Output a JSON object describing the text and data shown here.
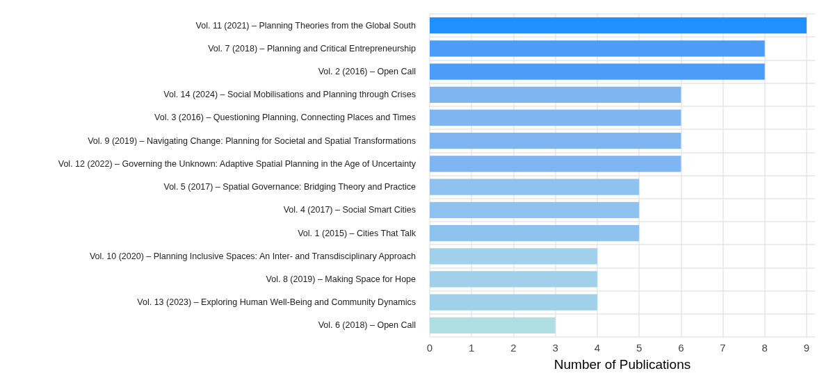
{
  "chart_data": {
    "type": "bar",
    "orientation": "horizontal",
    "xlabel": "Number of Publications",
    "categories": [
      "Vol. 11 (2021) – Planning Theories from the Global South",
      "Vol. 7 (2018) – Planning and Critical Entrepreneurship",
      "Vol. 2 (2016) – Open Call",
      "Vol. 14 (2024) – Social Mobilisations and Planning through Crises",
      "Vol. 3 (2016) – Questioning Planning, Connecting Places and Times",
      "Vol. 9 (2019) – Navigating Change: Planning for Societal and Spatial Transformations",
      "Vol. 12 (2022) – Governing the Unknown: Adaptive Spatial Planning in the Age of Uncertainty",
      "Vol. 5 (2017) – Spatial Governance: Bridging Theory and Practice",
      "Vol. 4 (2017) – Social Smart Cities",
      "Vol. 1 (2015) – Cities That Talk",
      "Vol. 10 (2020) – Planning Inclusive Spaces: An Inter- and Transdisciplinary Approach",
      "Vol. 8 (2019) – Making Space for Hope",
      "Vol. 13 (2023) – Exploring Human Well-Being and Community Dynamics",
      "Vol. 6 (2018) – Open Call"
    ],
    "values": [
      9,
      8,
      8,
      6,
      6,
      6,
      6,
      5,
      5,
      5,
      4,
      4,
      4,
      3
    ],
    "colors": [
      "#1e90ff",
      "#4d9cf8",
      "#4d9cf8",
      "#7fb5f0",
      "#7fb5f0",
      "#7fb5f0",
      "#7fb5f0",
      "#8fc2ee",
      "#8fc2ee",
      "#8fc2ee",
      "#a0d0ea",
      "#a0d0ea",
      "#a0d0ea",
      "#b0dfe3"
    ],
    "xlim": [
      0,
      9.2
    ],
    "xticks": [
      0,
      1,
      2,
      3,
      4,
      5,
      6,
      7,
      8,
      9
    ],
    "grid": true
  }
}
